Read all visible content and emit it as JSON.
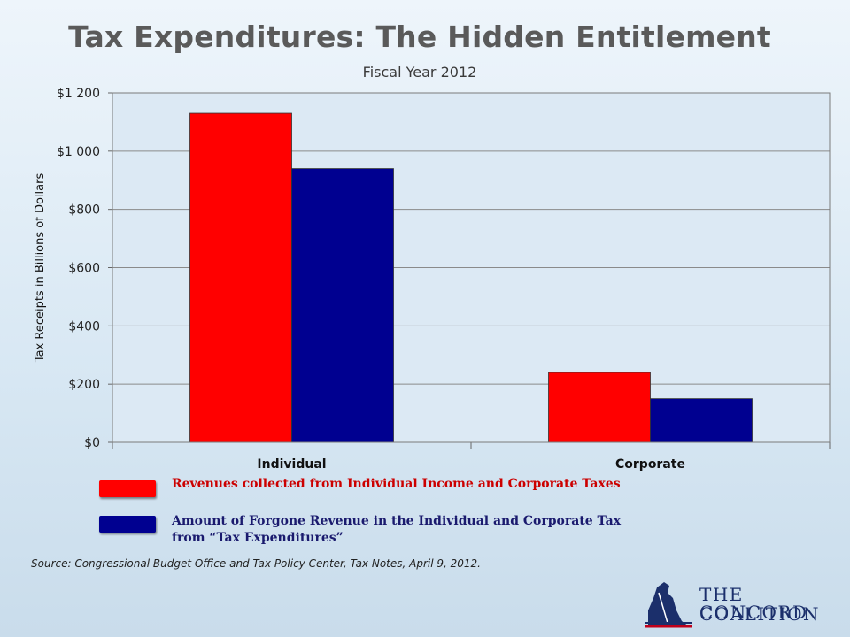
{
  "chart_data": {
    "type": "bar",
    "title": "Tax Expenditures:  The Hidden Entitlement",
    "subtitle": "Fiscal Year 2012",
    "ylabel": "Tax Receipts in Billions of Dollars",
    "xlabel": "",
    "categories": [
      "Individual",
      "Corporate"
    ],
    "ylim": [
      0,
      1200
    ],
    "yticks": [
      0,
      200,
      400,
      600,
      800,
      1000,
      1200
    ],
    "ytick_labels": [
      "$0",
      "$200",
      "$400",
      "$600",
      "$800",
      "$1 000",
      "$1 200"
    ],
    "grid": true,
    "series": [
      {
        "name": "Revenues collected  from Individual Income and Corporate Taxes",
        "color": "#ff0000",
        "values": [
          1130,
          240
        ]
      },
      {
        "name": "Amount of Forgone Revenue in the Individual and Corporate Tax from “Tax Expenditures”",
        "color": "#000090",
        "values": [
          940,
          150
        ]
      }
    ]
  },
  "legend": {
    "items": [
      {
        "lines": [
          "Revenues collected  from Individual Income and Corporate Taxes"
        ],
        "color": "#ff0000",
        "text_color": "#cc0000"
      },
      {
        "lines": [
          "Amount of Forgone Revenue in the Individual and Corporate Tax",
          "from “Tax Expenditures”"
        ],
        "color": "#000090",
        "text_color": "#1a1a6e"
      }
    ]
  },
  "source": "Source: Congressional Budget Office and Tax Policy Center, Tax Notes, April 9, 2012.",
  "logo": {
    "line1": "THE CONCORD",
    "line2": "COALITION"
  }
}
